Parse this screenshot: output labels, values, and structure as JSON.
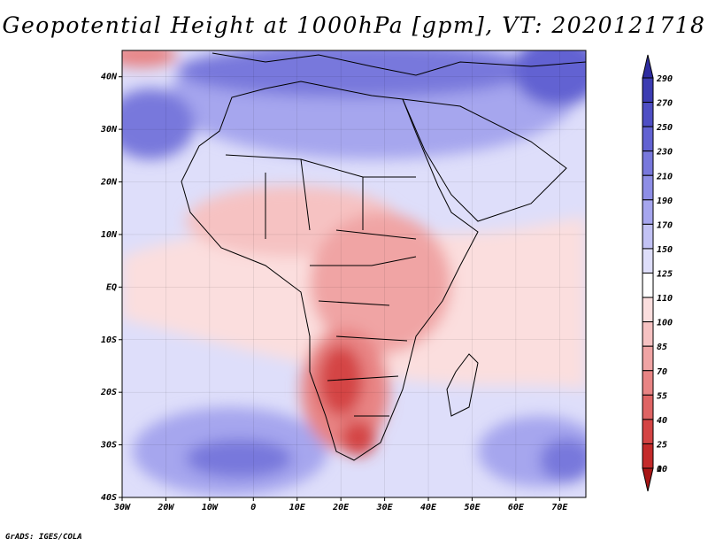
{
  "title": "Geopotential Height at 1000hPa [gpm], VT: 2020121718",
  "footer": "GrADS: IGES/COLA",
  "chart_data": {
    "type": "heatmap",
    "variable": "Geopotential Height at 1000hPa",
    "units": "gpm",
    "valid_time": "2020121718",
    "lon_range": [
      -30,
      76
    ],
    "lat_range": [
      -40,
      45
    ],
    "x_ticks": [
      "30W",
      "20W",
      "10W",
      "0",
      "10E",
      "20E",
      "30E",
      "40E",
      "50E",
      "60E",
      "70E"
    ],
    "y_ticks": [
      "40N",
      "30N",
      "20N",
      "10N",
      "EQ",
      "10S",
      "20S",
      "30S",
      "40S"
    ],
    "colorbar_labels": [
      "290",
      "270",
      "250",
      "230",
      "210",
      "190",
      "170",
      "150",
      "125",
      "110",
      "100",
      "85",
      "70",
      "55",
      "40",
      "25",
      "10",
      "0"
    ],
    "colorbar_colors": [
      "#2e2ca0",
      "#3c3cb2",
      "#4e4ec4",
      "#6262d2",
      "#7878dc",
      "#8e8ee6",
      "#a6a6ee",
      "#c2c2f4",
      "#dedefa",
      "#ffffff",
      "#fbdede",
      "#f6c2c2",
      "#f0a4a4",
      "#e88484",
      "#df6464",
      "#d44444",
      "#c42a2a",
      "#a81616"
    ]
  },
  "map": {
    "ocean_color": "#dedefa",
    "border_color": "#000000",
    "hatch_color": "#d04848"
  }
}
